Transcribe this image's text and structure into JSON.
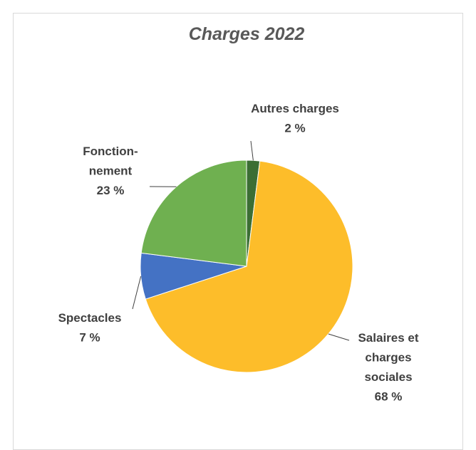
{
  "chart_data": {
    "type": "pie",
    "title": "Charges 2022",
    "categories": [
      "Autres charges",
      "Salaires et\ncharges\nsociales",
      "Spectacles",
      "Fonction-\nnement"
    ],
    "values": [
      2,
      68,
      7,
      23
    ],
    "value_labels": [
      "2 %",
      "68 %",
      "7 %",
      "23 %"
    ],
    "colors": [
      "#3b6e34",
      "#fdbd2a",
      "#4472c4",
      "#6fb050"
    ]
  }
}
